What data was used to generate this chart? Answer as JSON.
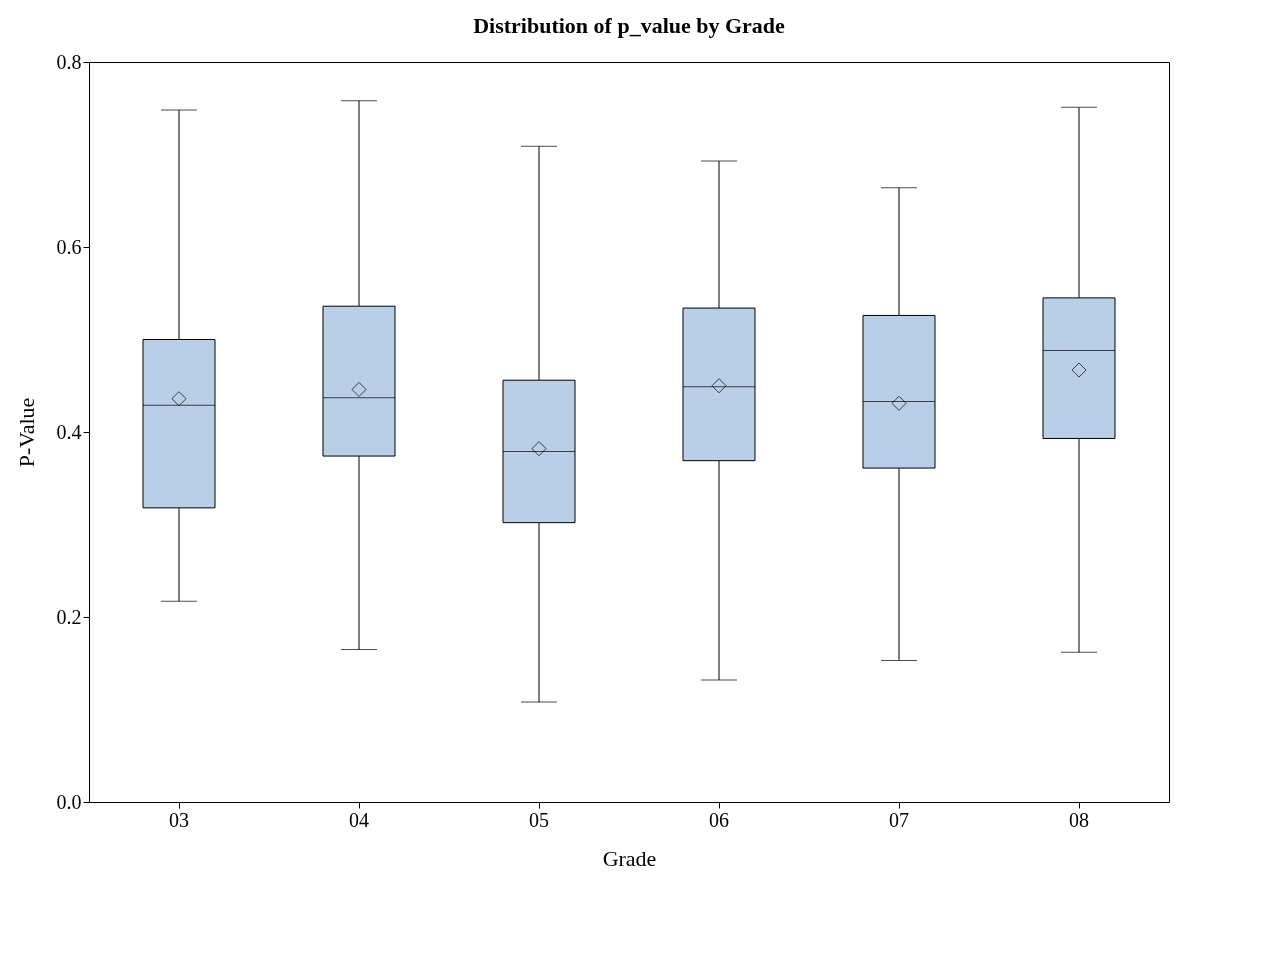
{
  "chart_data": {
    "type": "box",
    "title": "Distribution of p_value by Grade",
    "xlabel": "Grade",
    "ylabel": "P-Value",
    "categories": [
      "03",
      "04",
      "05",
      "06",
      "07",
      "08"
    ],
    "ylim": [
      0,
      0.8
    ],
    "yticks": [
      {
        "value": 0,
        "label": "0.0"
      },
      0.2,
      0.4,
      0.6,
      0.8
    ],
    "marker": "diamond",
    "series": [
      {
        "color": "#b9cfe7",
        "boxes": [
          {
            "low": 0.217,
            "q1": 0.318,
            "median": 0.429,
            "q3": 0.5,
            "high": 0.748,
            "mean": 0.436
          },
          {
            "low": 0.165,
            "q1": 0.374,
            "median": 0.437,
            "q3": 0.536,
            "high": 0.758,
            "mean": 0.446
          },
          {
            "low": 0.108,
            "q1": 0.302,
            "median": 0.379,
            "q3": 0.456,
            "high": 0.709,
            "mean": 0.382
          },
          {
            "low": 0.132,
            "q1": 0.369,
            "median": 0.449,
            "q3": 0.534,
            "high": 0.693,
            "mean": 0.45
          },
          {
            "low": 0.153,
            "q1": 0.361,
            "median": 0.433,
            "q3": 0.526,
            "high": 0.664,
            "mean": 0.431
          },
          {
            "low": 0.162,
            "q1": 0.393,
            "median": 0.488,
            "q3": 0.545,
            "high": 0.751,
            "mean": 0.467
          }
        ]
      }
    ]
  }
}
